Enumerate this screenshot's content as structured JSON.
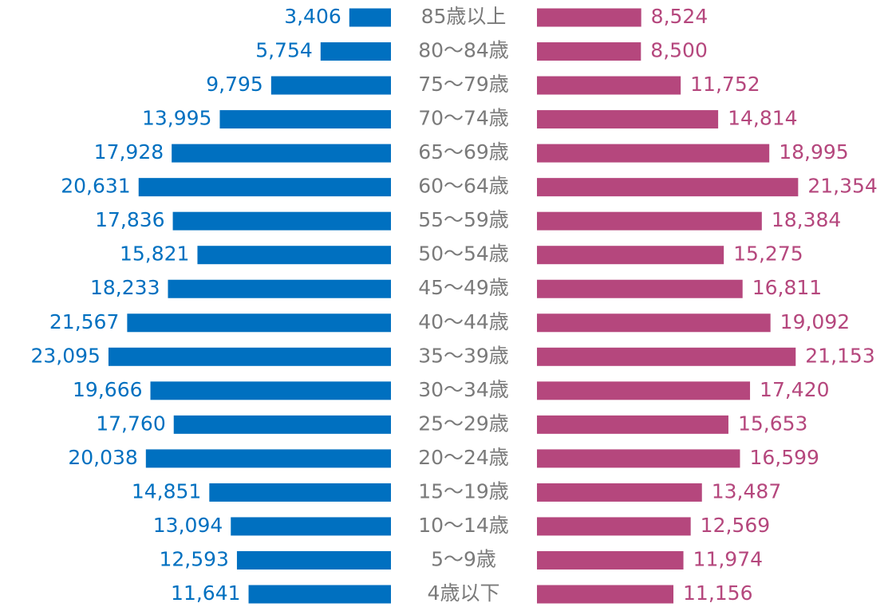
{
  "chart_data": {
    "type": "pyramid",
    "categories": [
      "85歳以上",
      "80～84歳",
      "75～79歳",
      "70～74歳",
      "65～69歳",
      "60～64歳",
      "55～59歳",
      "50～54歳",
      "45～49歳",
      "40～44歳",
      "35～39歳",
      "30～34歳",
      "25～29歳",
      "20～24歳",
      "15～19歳",
      "10～14歳",
      "5～9歳",
      "4歳以下"
    ],
    "series": [
      {
        "color": "#0070c0",
        "values": [
          3406,
          5754,
          9795,
          13995,
          17928,
          20631,
          17836,
          15821,
          18233,
          21567,
          23095,
          19666,
          17760,
          20038,
          14851,
          13094,
          12593,
          11641
        ],
        "value_labels": [
          "3,406",
          "5,754",
          "9,795",
          "13,995",
          "17,928",
          "20,631",
          "17,836",
          "15,821",
          "18,233",
          "21,567",
          "23,095",
          "19,666",
          "17,760",
          "20,038",
          "14,851",
          "13,094",
          "12,593",
          "11,641"
        ]
      },
      {
        "color": "#b5477d",
        "values": [
          8524,
          8500,
          11752,
          14814,
          18995,
          21354,
          18384,
          15275,
          16811,
          19092,
          21153,
          17420,
          15653,
          16599,
          13487,
          12569,
          11974,
          11156
        ],
        "value_labels": [
          "8,524",
          "8,500",
          "11,752",
          "14,814",
          "18,995",
          "21,354",
          "18,384",
          "15,275",
          "16,811",
          "19,092",
          "21,153",
          "17,420",
          "15,653",
          "16,599",
          "13,487",
          "12,569",
          "11,974",
          "11,156"
        ]
      }
    ]
  }
}
